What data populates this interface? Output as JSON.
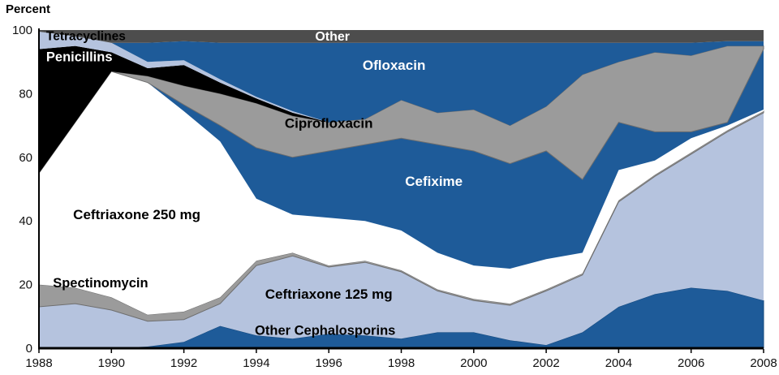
{
  "chart_data": {
    "type": "area",
    "title": "",
    "xlabel": "",
    "ylabel": "Percent",
    "ylim": [
      0,
      100
    ],
    "stacking": "bottom-to-top",
    "grid": false,
    "legend": "labels-inside-areas",
    "colors": {
      "dark_blue": "#1e5b99",
      "light_blue": "#b5c3de",
      "gray": "#9b9b9b",
      "white": "#ffffff",
      "black": "#000000",
      "dark_gray": "#4d4d4d"
    },
    "x": [
      1988,
      1989,
      1990,
      1991,
      1992,
      1993,
      1994,
      1995,
      1996,
      1997,
      1998,
      1999,
      2000,
      2001,
      2002,
      2003,
      2004,
      2005,
      2006,
      2007,
      2008
    ],
    "x_ticks": [
      1988,
      1990,
      1992,
      1994,
      1996,
      1998,
      2000,
      2002,
      2004,
      2006,
      2008
    ],
    "y_ticks": [
      0,
      20,
      40,
      60,
      80,
      100
    ],
    "series": [
      {
        "id": "other-cephalosporins",
        "name": "Other Cephalosporins",
        "color": "#1e5b99",
        "stroke": "#15497d",
        "values": [
          0,
          0,
          0,
          0.5,
          2,
          7,
          4,
          3,
          4.5,
          4,
          3,
          5,
          5,
          2.5,
          1,
          5,
          13,
          17,
          19,
          18,
          15
        ]
      },
      {
        "id": "ceftriaxone-125",
        "name": "Ceftriaxone 125 mg",
        "color": "#b5c3de",
        "values": [
          13,
          14,
          12,
          8,
          7,
          7,
          22,
          26,
          21,
          23,
          21,
          13,
          10,
          11,
          17,
          18,
          33,
          37,
          42,
          50,
          59
        ]
      },
      {
        "id": "spectinomycin",
        "name": "Spectinomycin",
        "color": "#9b9b9b",
        "stroke": "#6e6e6e",
        "values": [
          7,
          5,
          4,
          2,
          2.5,
          2,
          1.5,
          1,
          0.5,
          0.5,
          0.5,
          0.5,
          0.5,
          0.5,
          0.5,
          0.5,
          0.5,
          0.5,
          0.5,
          0.5,
          0.5
        ]
      },
      {
        "id": "ceftriaxone-250",
        "name": "Ceftriaxone 250 mg",
        "color": "#ffffff",
        "values": [
          35,
          52,
          71,
          73,
          63,
          49,
          19.5,
          12,
          15,
          12.5,
          12.5,
          11.5,
          10.5,
          11,
          9.5,
          6.5,
          9.5,
          4.5,
          4.5,
          1.5,
          0.5
        ]
      },
      {
        "id": "cefixime",
        "name": "Cefixime",
        "color": "#1e5b99",
        "values": [
          0,
          0,
          0,
          0,
          2,
          5,
          16,
          18,
          21,
          24,
          29,
          34,
          36,
          33,
          34,
          23,
          15,
          9,
          2,
          1,
          19
        ]
      },
      {
        "id": "ciprofloxacin",
        "name": "Ciprofloxacin",
        "color": "#9b9b9b",
        "stroke": "#6e6e6e",
        "values": [
          0,
          0,
          0,
          2,
          6,
          10,
          14,
          13,
          9,
          8,
          12,
          10,
          13,
          12,
          14,
          33,
          19,
          25,
          24,
          24,
          1
        ]
      },
      {
        "id": "penicillins",
        "name": "Penicillins",
        "color": "#000000",
        "values": [
          39,
          24,
          6,
          2.5,
          6.5,
          3.5,
          1.5,
          1,
          0,
          0,
          0,
          0,
          0,
          0,
          0,
          0,
          0,
          0,
          0,
          0,
          0
        ]
      },
      {
        "id": "tetracyclines",
        "name": "Tetracyclines",
        "color": "#b5c3de",
        "values": [
          5.5,
          3,
          3,
          2,
          1.5,
          1,
          0.5,
          0.5,
          0,
          0,
          0,
          0,
          0,
          0,
          0,
          0,
          0,
          0,
          0,
          0,
          0
        ]
      },
      {
        "id": "ofloxacin",
        "name": "Ofloxacin",
        "color": "#1e5b99",
        "values": [
          0,
          0,
          0,
          6,
          6,
          11.5,
          17,
          21.5,
          25,
          24,
          18,
          22,
          21,
          26,
          20,
          10,
          6,
          3,
          4,
          1.5,
          1.5
        ]
      },
      {
        "id": "other",
        "name": "Other",
        "color": "#4d4d4d",
        "values": [
          0.5,
          2,
          4,
          4,
          3.5,
          4,
          4,
          4,
          4,
          4,
          4,
          4,
          4,
          4,
          4,
          4,
          4,
          4,
          4,
          3.5,
          3.5
        ]
      }
    ],
    "annotations": [
      {
        "id": "tetracyclines",
        "text": "Tetracyclines",
        "year": 1988.2,
        "pct": 96.8,
        "color": "#000000",
        "anchor": "start",
        "size": 15.5
      },
      {
        "id": "penicillins",
        "text": "Penicillins",
        "year": 1988.2,
        "pct": 90.2,
        "color": "#ffffff",
        "anchor": "start",
        "size": 16.5
      },
      {
        "id": "other",
        "text": "Other",
        "year": 1996.1,
        "pct": 96.7,
        "color": "#ffffff",
        "anchor": "middle",
        "size": 16
      },
      {
        "id": "ofloxacin",
        "text": "Ofloxacin",
        "year": 1997.8,
        "pct": 87.5,
        "color": "#ffffff",
        "anchor": "middle",
        "size": 17
      },
      {
        "id": "ciprofloxacin",
        "text": "Ciprofloxacin",
        "year": 1996.0,
        "pct": 69.3,
        "color": "#000000",
        "anchor": "middle",
        "size": 17
      },
      {
        "id": "cefixime",
        "text": "Cefixime",
        "year": 1998.9,
        "pct": 51.0,
        "color": "#ffffff",
        "anchor": "middle",
        "size": 17
      },
      {
        "id": "ceftriaxone-250",
        "text": "Ceftriaxone 250 mg",
        "year": 1990.7,
        "pct": 40.6,
        "color": "#000000",
        "anchor": "middle",
        "size": 17
      },
      {
        "id": "spectinomycin",
        "text": "Spectinomycin",
        "year": 1989.7,
        "pct": 19.1,
        "color": "#000000",
        "anchor": "middle",
        "size": 16.5
      },
      {
        "id": "ceftriaxone-125",
        "text": "Ceftriaxone 125 mg",
        "year": 1996.0,
        "pct": 15.6,
        "color": "#000000",
        "anchor": "middle",
        "size": 17
      },
      {
        "id": "other-cephalosporins",
        "text": "Other Cephalosporins",
        "year": 1995.9,
        "pct": 4.2,
        "color": "#000000",
        "anchor": "middle",
        "size": 16.5
      }
    ]
  }
}
